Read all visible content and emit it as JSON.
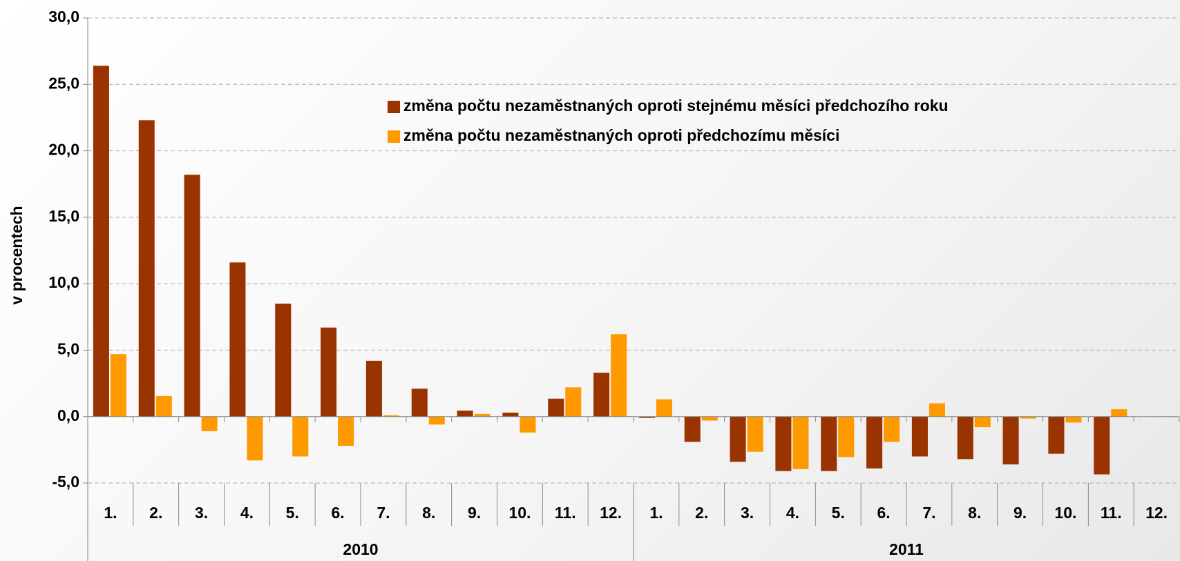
{
  "chart_data": {
    "type": "bar",
    "y_label": "v procentech",
    "categories": [
      "1.",
      "2.",
      "3.",
      "4.",
      "5.",
      "6.",
      "7.",
      "8.",
      "9.",
      "10.",
      "11.",
      "12.",
      "1.",
      "2.",
      "3.",
      "4.",
      "5.",
      "6.",
      "7.",
      "8.",
      "9.",
      "10.",
      "11.",
      "12."
    ],
    "groups": [
      "2010",
      "2011"
    ],
    "series": [
      {
        "name": "změna počtu nezaměstnaných oproti stejnému měsíci předchozího roku",
        "color": "#993300",
        "values": [
          26.4,
          22.3,
          18.2,
          11.6,
          8.5,
          6.7,
          4.2,
          2.1,
          0.45,
          0.3,
          1.35,
          3.3,
          -0.1,
          -1.9,
          -3.4,
          -4.1,
          -4.1,
          -3.9,
          -3.0,
          -3.2,
          -3.6,
          -2.8,
          -4.35,
          null
        ]
      },
      {
        "name": "změna počtu nezaměstnaných oproti předchozímu měsíci",
        "color": "#ff9900",
        "values": [
          4.7,
          1.55,
          -1.1,
          -3.3,
          -3.0,
          -2.2,
          0.1,
          -0.6,
          0.2,
          -1.2,
          2.2,
          6.2,
          1.3,
          -0.3,
          -2.65,
          -3.95,
          -3.05,
          -1.9,
          1.0,
          -0.8,
          -0.15,
          -0.45,
          0.55,
          null
        ]
      }
    ],
    "ylim": [
      -5,
      30
    ],
    "yticks": [
      {
        "value": -5,
        "label": "-5,0"
      },
      {
        "value": 0,
        "label": "0,0"
      },
      {
        "value": 5,
        "label": "5,0"
      },
      {
        "value": 10,
        "label": "10,0"
      },
      {
        "value": 15,
        "label": "15,0"
      },
      {
        "value": 20,
        "label": "20,0"
      },
      {
        "value": 25,
        "label": "25,0"
      },
      {
        "value": 30,
        "label": "30,0"
      }
    ],
    "grid": true
  }
}
